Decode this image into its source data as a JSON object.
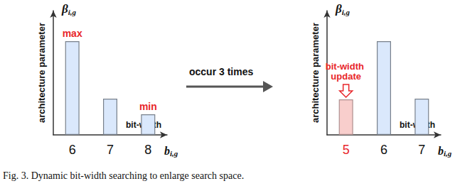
{
  "chart_data": [
    {
      "type": "bar",
      "ylabel": "architecture parameter",
      "ylabel_symbol": "β",
      "ylabel_symbol_sub": "i,g",
      "xlabel": "bit-width",
      "xlabel_symbol": "b",
      "xlabel_symbol_sub": "i,g",
      "categories": [
        "6",
        "7",
        "8"
      ],
      "values": [
        132,
        51,
        29
      ],
      "colors": [
        "#dae8fc",
        "#dae8fc",
        "#dae8fc"
      ],
      "ylim": [
        0,
        175
      ],
      "tick_labels": "x",
      "grid": false,
      "annotations": [
        {
          "category": "6",
          "text": "max"
        },
        {
          "category": "8",
          "text": "min"
        }
      ]
    },
    {
      "type": "bar",
      "ylabel": "architecture parameter",
      "ylabel_symbol": "β",
      "ylabel_symbol_sub": "i,g",
      "xlabel": "bit-width",
      "xlabel_symbol": "b",
      "xlabel_symbol_sub": "i,g",
      "categories": [
        "5",
        "6",
        "7"
      ],
      "values": [
        50,
        132,
        51
      ],
      "colors": [
        "#f8cecc",
        "#dae8fc",
        "#dae8fc"
      ],
      "ylim": [
        0,
        175
      ],
      "tick_labels": "x",
      "grid": false,
      "annotations": [
        {
          "category": "5",
          "text": "bit-width update"
        }
      ]
    }
  ],
  "transition_label": "occur 3 times",
  "caption": "Fig. 3. Dynamic bit-width searching to enlarge search space."
}
